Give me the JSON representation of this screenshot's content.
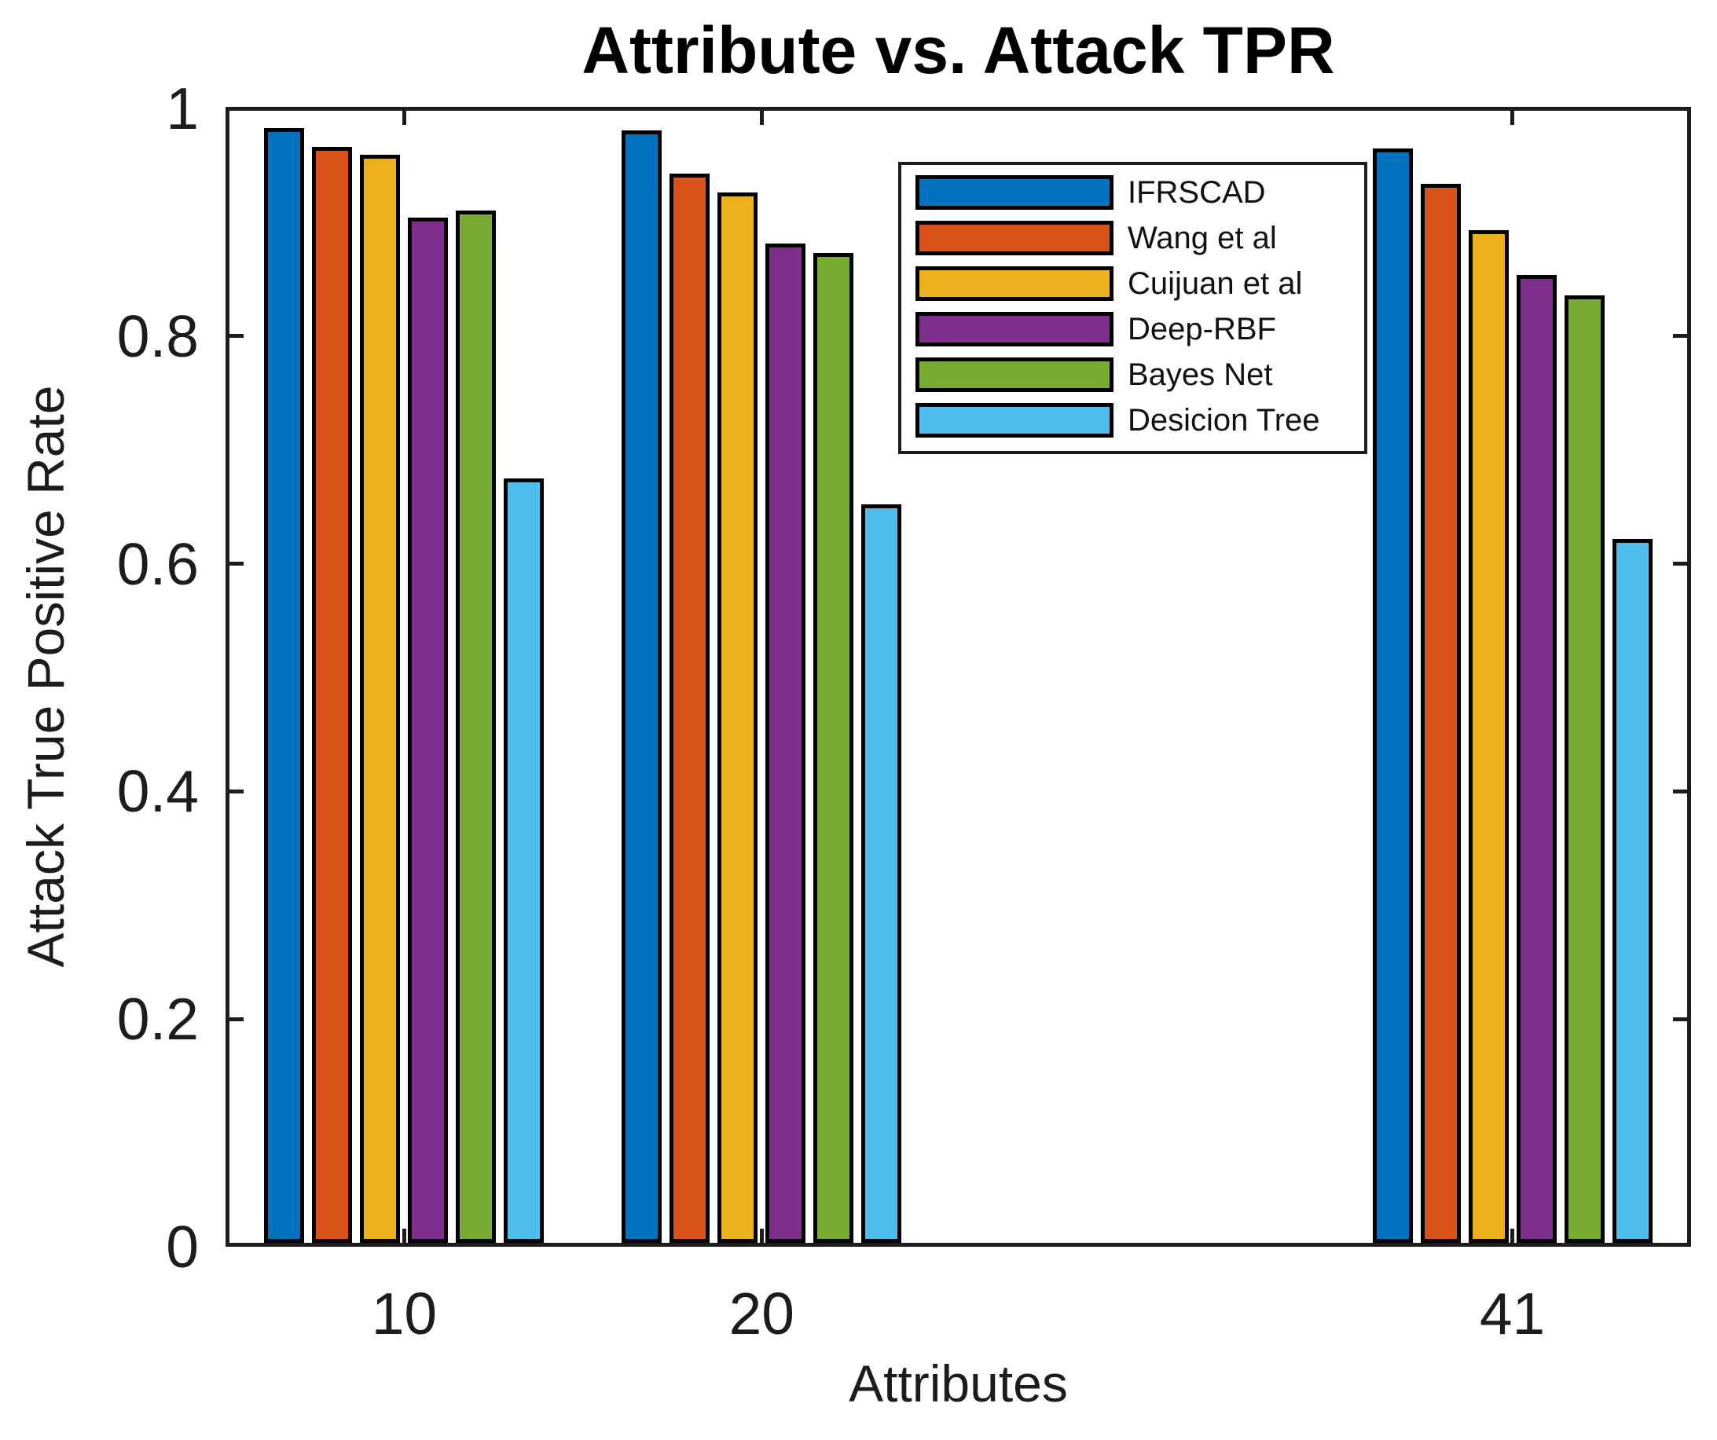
{
  "chart_data": {
    "type": "bar",
    "title": "Attribute vs. Attack TPR",
    "xlabel": "Attributes",
    "ylabel": "Attack True Positive Rate",
    "categories": [
      "10",
      "20",
      "41"
    ],
    "x_values": [
      10,
      20,
      41
    ],
    "xlim": [
      5,
      46
    ],
    "ylim": [
      0,
      1
    ],
    "y_tick_values": [
      0,
      0.2,
      0.4,
      0.6,
      0.8,
      1
    ],
    "y_tick_labels": [
      "0",
      "0.2",
      "0.4",
      "0.6",
      "0.8",
      "1"
    ],
    "x_tick_labels": [
      "10",
      "20",
      "41"
    ],
    "grid": false,
    "legend_position": "upper-right-inside",
    "bar_edge_color": "#000000",
    "axis_color": "#1c1c1c",
    "series": [
      {
        "name": "IFRSCAD",
        "color": "#0072BD",
        "values": [
          0.983,
          0.981,
          0.965
        ]
      },
      {
        "name": "Wang et al",
        "color": "#D95319",
        "values": [
          0.966,
          0.943,
          0.934
        ]
      },
      {
        "name": "Cuijuan et al",
        "color": "#EDB120",
        "values": [
          0.959,
          0.926,
          0.893
        ]
      },
      {
        "name": "Deep-RBF",
        "color": "#7E2F8E",
        "values": [
          0.904,
          0.881,
          0.854
        ]
      },
      {
        "name": "Bayes Net",
        "color": "#77AC30",
        "values": [
          0.91,
          0.873,
          0.836
        ]
      },
      {
        "name": "Desicion Tree",
        "color": "#4DBEEE",
        "values": [
          0.675,
          0.652,
          0.622
        ]
      }
    ]
  }
}
